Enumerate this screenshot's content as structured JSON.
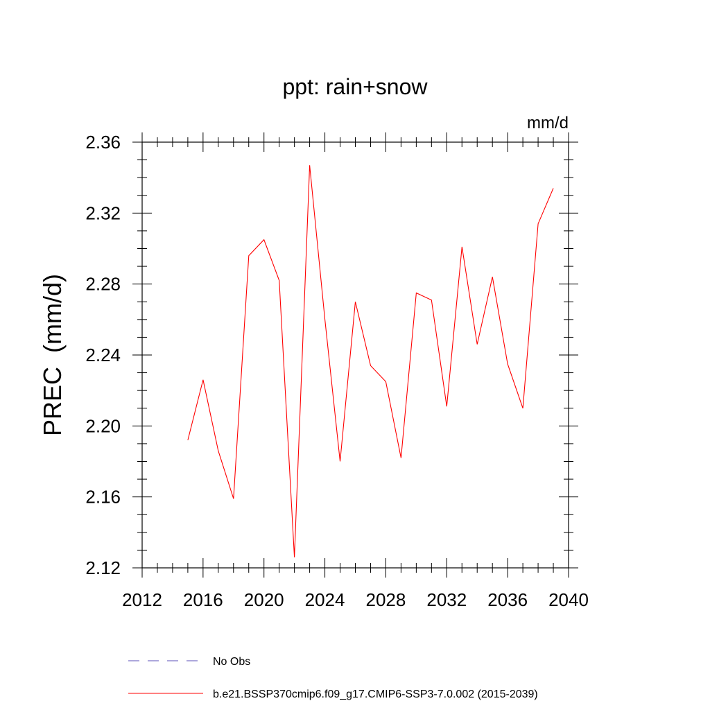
{
  "chart_data": {
    "type": "line",
    "title": "ppt: rain+snow",
    "units": "mm/d",
    "xlabel": "",
    "ylabel": "PREC  (mm/d)",
    "xlim": [
      2012,
      2040
    ],
    "ylim": [
      2.12,
      2.36
    ],
    "xticks": [
      "2012",
      "2016",
      "2020",
      "2024",
      "2028",
      "2032",
      "2036",
      "2040"
    ],
    "yticks": [
      "2.12",
      "2.16",
      "2.20",
      "2.24",
      "2.28",
      "2.32",
      "2.36"
    ],
    "grid": false,
    "legend_position": "bottom",
    "series": [
      {
        "name": "b.e21.BSSP370cmip6.f09_g17.CMIP6-SSP3-7.0.002 (2015-2039)",
        "color": "#ff0000",
        "x": [
          2015,
          2016,
          2017,
          2018,
          2019,
          2020,
          2021,
          2022,
          2023,
          2024,
          2025,
          2026,
          2027,
          2028,
          2029,
          2030,
          2031,
          2032,
          2033,
          2034,
          2035,
          2036,
          2037,
          2038,
          2039
        ],
        "values": [
          2.192,
          2.226,
          2.186,
          2.159,
          2.296,
          2.305,
          2.282,
          2.126,
          2.347,
          2.26,
          2.18,
          2.27,
          2.234,
          2.225,
          2.182,
          2.275,
          2.271,
          2.211,
          2.301,
          2.246,
          2.284,
          2.235,
          2.21,
          2.314,
          2.334
        ]
      }
    ],
    "legend": [
      {
        "label": "No Obs",
        "color": "#5b4fb8",
        "style": "dashed"
      },
      {
        "label": "b.e21.BSSP370cmip6.f09_g17.CMIP6-SSP3-7.0.002 (2015-2039)",
        "color": "#ff0000",
        "style": "solid"
      }
    ]
  }
}
